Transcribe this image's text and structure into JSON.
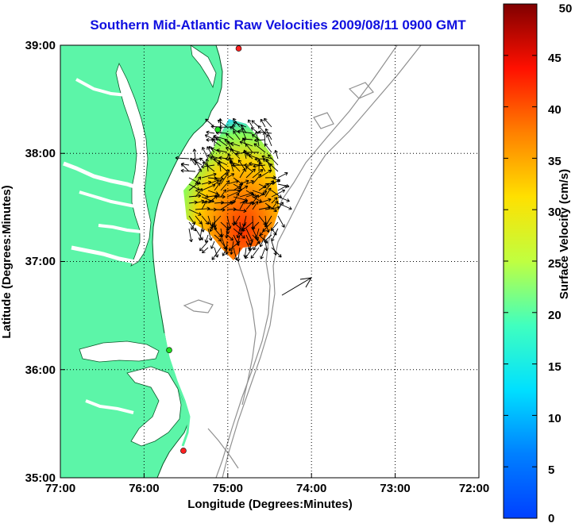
{
  "title": "Southern Mid-Atlantic Raw Velocities 2009/08/11 0900 GMT",
  "x_axis": {
    "label": "Longitude (Degrees:Minutes)",
    "ticks": [
      "77:00",
      "76:00",
      "75:00",
      "74:00",
      "73:00",
      "72:00"
    ]
  },
  "y_axis": {
    "label": "Latitude (Degrees:Minutes)",
    "ticks": [
      "39:00",
      "38:00",
      "37:00",
      "36:00",
      "35:00"
    ]
  },
  "colorbar": {
    "label": "Surface Velocity (cm/s)",
    "ticks": [
      "50",
      "45",
      "40",
      "35",
      "30",
      "25",
      "20",
      "15",
      "10",
      "5",
      "0"
    ],
    "min": 0,
    "max": 50
  },
  "map_extent": {
    "lon": [
      -77,
      -72
    ],
    "lat": [
      35,
      39
    ]
  },
  "colors": {
    "land": "#5cf5a8",
    "coast": "#0a5a2a",
    "bathymetry": "#909090",
    "title": "#1010e0",
    "grid": "#000000"
  },
  "sites": [
    {
      "lon": -74.87,
      "lat": 38.97,
      "color": "#ff2020"
    },
    {
      "lon": -75.12,
      "lat": 38.22,
      "color": "#20e020"
    },
    {
      "lon": -75.7,
      "lat": 36.18,
      "color": "#20e020"
    },
    {
      "lon": -75.53,
      "lat": 35.25,
      "color": "#ff2020"
    }
  ],
  "scale_arrow": {
    "lon": -74.3,
    "lat": 36.83
  }
}
